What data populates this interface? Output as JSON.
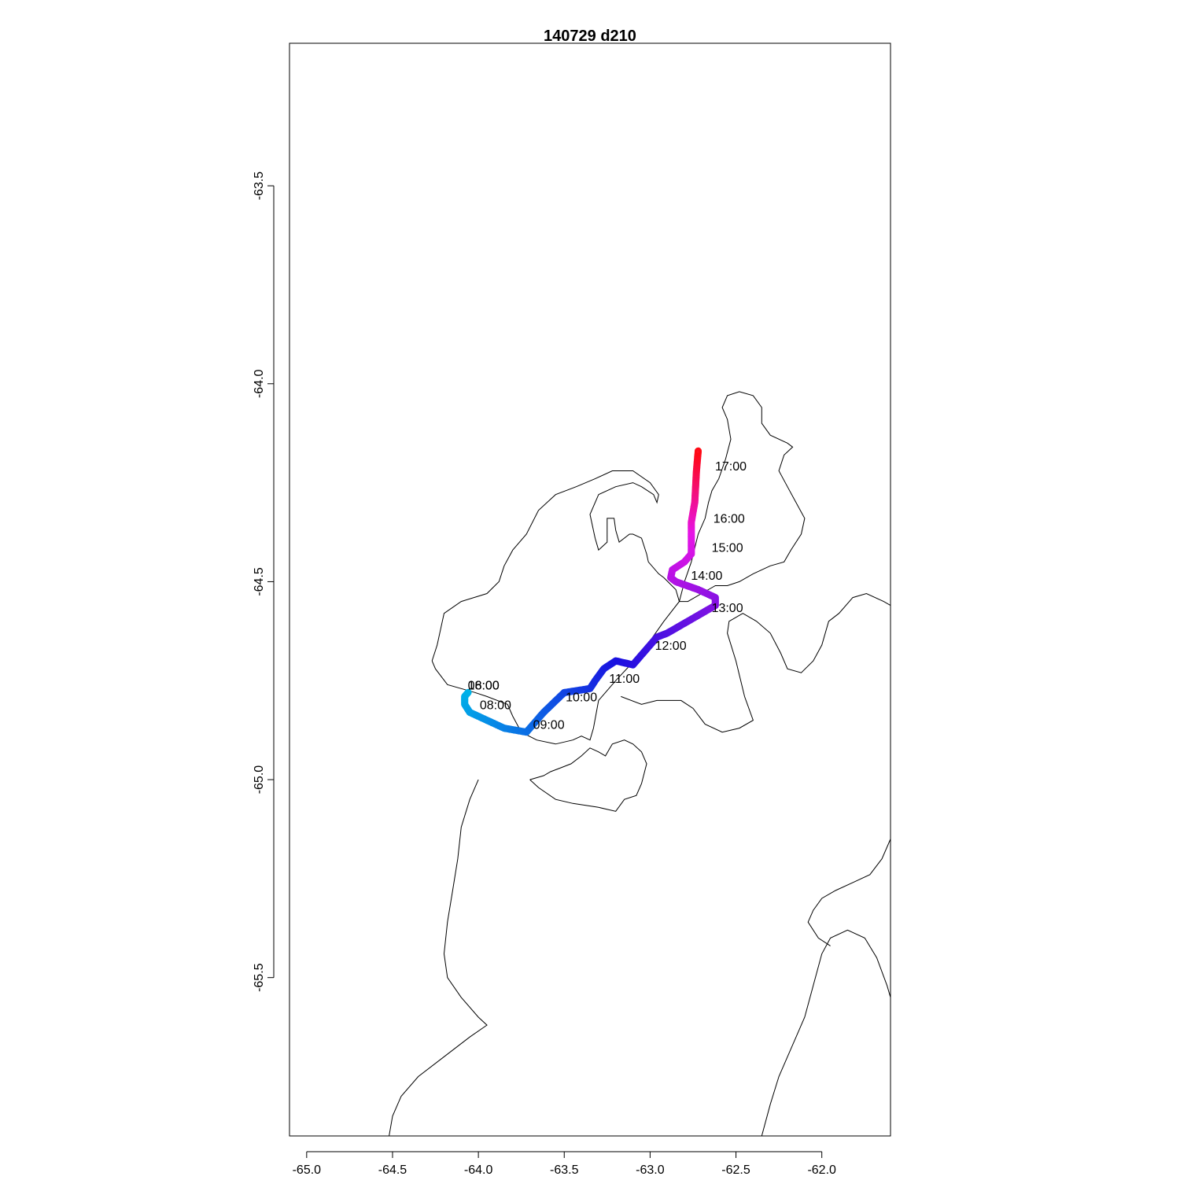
{
  "title": "140729   d210",
  "chart_data": {
    "type": "map-track",
    "title": "140729   d210",
    "xlabel": "",
    "ylabel": "",
    "xlim": [
      -65.1,
      -61.6
    ],
    "ylim": [
      -65.9,
      -63.14
    ],
    "x_ticks": [
      -65.0,
      -64.5,
      -64.0,
      -63.5,
      -63.0,
      -62.5,
      -62.0
    ],
    "y_ticks": [
      -63.5,
      -64.0,
      -64.5,
      -65.0,
      -65.5
    ],
    "x_tick_labels": [
      "-65.0",
      "-64.5",
      "-64.0",
      "-63.5",
      "-63.0",
      "-62.5",
      "-62.0"
    ],
    "y_tick_labels": [
      "-63.5",
      "-64.0",
      "-64.5",
      "-65.0",
      "-65.5"
    ],
    "track_color_start": "#00b4e8",
    "track_color_mid": "#1a10e0",
    "track_color_end": "#ff0a14",
    "track": [
      [
        -64.06,
        -64.78
      ],
      [
        -64.08,
        -64.79
      ],
      [
        -64.08,
        -64.81
      ],
      [
        -64.05,
        -64.83
      ],
      [
        -63.95,
        -64.85
      ],
      [
        -63.85,
        -64.87
      ],
      [
        -63.72,
        -64.88
      ],
      [
        -63.68,
        -64.86
      ],
      [
        -63.62,
        -64.83
      ],
      [
        -63.5,
        -64.78
      ],
      [
        -63.35,
        -64.77
      ],
      [
        -63.32,
        -64.75
      ],
      [
        -63.27,
        -64.72
      ],
      [
        -63.2,
        -64.7
      ],
      [
        -63.1,
        -64.71
      ],
      [
        -63.04,
        -64.68
      ],
      [
        -62.96,
        -64.64
      ],
      [
        -62.9,
        -64.63
      ],
      [
        -62.82,
        -64.61
      ],
      [
        -62.7,
        -64.58
      ],
      [
        -62.62,
        -64.56
      ],
      [
        -62.62,
        -64.54
      ],
      [
        -62.72,
        -64.52
      ],
      [
        -62.85,
        -64.5
      ],
      [
        -62.88,
        -64.49
      ],
      [
        -62.87,
        -64.47
      ],
      [
        -62.8,
        -64.45
      ],
      [
        -62.76,
        -64.43
      ],
      [
        -62.76,
        -64.35
      ],
      [
        -62.74,
        -64.3
      ],
      [
        -62.73,
        -64.22
      ],
      [
        -62.72,
        -64.17
      ]
    ],
    "time_labels": [
      {
        "time": "08:00",
        "lon": -63.9,
        "lat": -64.822
      },
      {
        "time": "09:00",
        "lon": -63.59,
        "lat": -64.872
      },
      {
        "time": "10:00",
        "lon": -63.4,
        "lat": -64.802
      },
      {
        "time": "11:00",
        "lon": -63.15,
        "lat": -64.755
      },
      {
        "time": "12:00",
        "lon": -62.88,
        "lat": -64.672
      },
      {
        "time": "13:00",
        "lon": -62.55,
        "lat": -64.577
      },
      {
        "time": "14:00",
        "lon": -62.67,
        "lat": -64.495
      },
      {
        "time": "15:00",
        "lon": -62.55,
        "lat": -64.425
      },
      {
        "time": "16:00",
        "lon": -62.54,
        "lat": -64.351
      },
      {
        "time": "17:00",
        "lon": -62.53,
        "lat": -64.219
      },
      {
        "time": "18:00",
        "lon": -63.97,
        "lat": -64.772
      },
      {
        "time": "06:00",
        "lon": -63.97,
        "lat": -64.772
      }
    ],
    "coastlines": [
      [
        [
          -64.27,
          -64.7
        ],
        [
          -64.25,
          -64.72
        ],
        [
          -64.18,
          -64.76
        ],
        [
          -64.1,
          -64.77
        ],
        [
          -64.02,
          -64.78
        ],
        [
          -63.95,
          -64.79
        ],
        [
          -63.83,
          -64.81
        ],
        [
          -63.8,
          -64.84
        ],
        [
          -63.75,
          -64.88
        ],
        [
          -63.66,
          -64.9
        ],
        [
          -63.55,
          -64.91
        ],
        [
          -63.45,
          -64.9
        ],
        [
          -63.4,
          -64.89
        ],
        [
          -63.35,
          -64.9
        ],
        [
          -63.33,
          -64.87
        ],
        [
          -63.3,
          -64.8
        ],
        [
          -63.2,
          -64.75
        ],
        [
          -63.05,
          -64.68
        ],
        [
          -62.92,
          -64.6
        ],
        [
          -62.83,
          -64.55
        ],
        [
          -62.85,
          -64.52
        ],
        [
          -62.92,
          -64.49
        ],
        [
          -62.95,
          -64.48
        ],
        [
          -63.01,
          -64.45
        ],
        [
          -63.02,
          -64.43
        ],
        [
          -63.05,
          -64.39
        ],
        [
          -63.1,
          -64.38
        ],
        [
          -63.12,
          -64.38
        ],
        [
          -63.18,
          -64.4
        ],
        [
          -63.2,
          -64.37
        ],
        [
          -63.21,
          -64.34
        ],
        [
          -63.25,
          -64.34
        ],
        [
          -63.25,
          -64.4
        ],
        [
          -63.3,
          -64.42
        ],
        [
          -63.32,
          -64.39
        ],
        [
          -63.35,
          -64.33
        ],
        [
          -63.3,
          -64.28
        ],
        [
          -63.2,
          -64.26
        ],
        [
          -63.1,
          -64.25
        ],
        [
          -63.05,
          -64.26
        ],
        [
          -62.98,
          -64.28
        ],
        [
          -62.96,
          -64.3
        ],
        [
          -62.95,
          -64.28
        ],
        [
          -63.0,
          -64.25
        ],
        [
          -63.1,
          -64.22
        ],
        [
          -63.22,
          -64.22
        ],
        [
          -63.32,
          -64.24
        ],
        [
          -63.43,
          -64.26
        ],
        [
          -63.55,
          -64.28
        ],
        [
          -63.65,
          -64.32
        ],
        [
          -63.72,
          -64.38
        ],
        [
          -63.8,
          -64.42
        ],
        [
          -63.85,
          -64.46
        ],
        [
          -63.88,
          -64.5
        ],
        [
          -63.95,
          -64.53
        ],
        [
          -64.1,
          -64.55
        ],
        [
          -64.2,
          -64.58
        ],
        [
          -64.22,
          -64.62
        ],
        [
          -64.24,
          -64.66
        ],
        [
          -64.27,
          -64.7
        ]
      ],
      [
        [
          -62.83,
          -64.55
        ],
        [
          -62.8,
          -64.5
        ],
        [
          -62.76,
          -64.45
        ],
        [
          -62.72,
          -64.38
        ],
        [
          -62.68,
          -64.34
        ],
        [
          -62.66,
          -64.3
        ],
        [
          -62.64,
          -64.27
        ],
        [
          -62.6,
          -64.24
        ],
        [
          -62.56,
          -64.19
        ],
        [
          -62.53,
          -64.14
        ],
        [
          -62.55,
          -64.09
        ],
        [
          -62.58,
          -64.06
        ],
        [
          -62.55,
          -64.03
        ],
        [
          -62.48,
          -64.02
        ],
        [
          -62.4,
          -64.03
        ],
        [
          -62.35,
          -64.06
        ],
        [
          -62.35,
          -64.1
        ],
        [
          -62.3,
          -64.13
        ],
        [
          -62.2,
          -64.15
        ],
        [
          -62.17,
          -64.16
        ],
        [
          -62.22,
          -64.18
        ],
        [
          -62.25,
          -64.22
        ],
        [
          -62.2,
          -64.26
        ],
        [
          -62.15,
          -64.3
        ],
        [
          -62.1,
          -64.34
        ],
        [
          -62.12,
          -64.38
        ],
        [
          -62.18,
          -64.42
        ],
        [
          -62.22,
          -64.45
        ],
        [
          -62.3,
          -64.46
        ],
        [
          -62.4,
          -64.48
        ],
        [
          -62.48,
          -64.5
        ],
        [
          -62.55,
          -64.51
        ],
        [
          -62.62,
          -64.51
        ],
        [
          -62.7,
          -64.53
        ],
        [
          -62.78,
          -64.55
        ],
        [
          -62.83,
          -64.55
        ]
      ],
      [
        [
          -63.17,
          -64.79
        ],
        [
          -63.05,
          -64.81
        ],
        [
          -62.96,
          -64.8
        ],
        [
          -62.88,
          -64.8
        ],
        [
          -62.82,
          -64.8
        ],
        [
          -62.75,
          -64.82
        ],
        [
          -62.68,
          -64.86
        ],
        [
          -62.58,
          -64.88
        ],
        [
          -62.48,
          -64.87
        ],
        [
          -62.4,
          -64.85
        ],
        [
          -62.45,
          -64.79
        ],
        [
          -62.5,
          -64.7
        ],
        [
          -62.55,
          -64.63
        ],
        [
          -62.54,
          -64.6
        ],
        [
          -62.46,
          -64.58
        ],
        [
          -62.38,
          -64.6
        ],
        [
          -62.3,
          -64.63
        ],
        [
          -62.24,
          -64.68
        ],
        [
          -62.2,
          -64.72
        ],
        [
          -62.12,
          -64.73
        ],
        [
          -62.05,
          -64.7
        ],
        [
          -62.0,
          -64.66
        ],
        [
          -61.96,
          -64.6
        ],
        [
          -61.9,
          -64.58
        ],
        [
          -61.82,
          -64.54
        ],
        [
          -61.74,
          -64.53
        ],
        [
          -61.64,
          -64.55
        ],
        [
          -61.6,
          -64.56
        ]
      ],
      [
        [
          -63.7,
          -65.0
        ],
        [
          -63.65,
          -65.02
        ],
        [
          -63.55,
          -65.05
        ],
        [
          -63.45,
          -65.06
        ],
        [
          -63.3,
          -65.07
        ],
        [
          -63.2,
          -65.08
        ],
        [
          -63.15,
          -65.05
        ],
        [
          -63.08,
          -65.04
        ],
        [
          -63.05,
          -65.01
        ],
        [
          -63.02,
          -64.96
        ],
        [
          -63.05,
          -64.93
        ],
        [
          -63.1,
          -64.91
        ],
        [
          -63.15,
          -64.9
        ],
        [
          -63.22,
          -64.91
        ],
        [
          -63.26,
          -64.94
        ],
        [
          -63.3,
          -64.93
        ],
        [
          -63.35,
          -64.92
        ],
        [
          -63.4,
          -64.94
        ],
        [
          -63.46,
          -64.96
        ],
        [
          -63.52,
          -64.97
        ],
        [
          -63.58,
          -64.98
        ],
        [
          -63.62,
          -64.99
        ],
        [
          -63.7,
          -65.0
        ]
      ],
      [
        [
          -64.0,
          -65.0
        ],
        [
          -64.05,
          -65.05
        ],
        [
          -64.1,
          -65.12
        ],
        [
          -64.12,
          -65.2
        ],
        [
          -64.15,
          -65.28
        ],
        [
          -64.18,
          -65.36
        ],
        [
          -64.2,
          -65.44
        ],
        [
          -64.18,
          -65.5
        ],
        [
          -64.1,
          -65.55
        ],
        [
          -64.0,
          -65.6
        ],
        [
          -63.95,
          -65.62
        ],
        [
          -64.05,
          -65.65
        ],
        [
          -64.2,
          -65.7
        ],
        [
          -64.35,
          -65.75
        ],
        [
          -64.45,
          -65.8
        ],
        [
          -64.5,
          -65.85
        ],
        [
          -64.52,
          -65.9
        ]
      ],
      [
        [
          -62.35,
          -65.9
        ],
        [
          -62.3,
          -65.82
        ],
        [
          -62.25,
          -65.75
        ],
        [
          -62.18,
          -65.68
        ],
        [
          -62.1,
          -65.6
        ],
        [
          -62.05,
          -65.52
        ],
        [
          -62.0,
          -65.44
        ],
        [
          -61.95,
          -65.4
        ],
        [
          -61.85,
          -65.38
        ],
        [
          -61.75,
          -65.4
        ],
        [
          -61.68,
          -65.45
        ],
        [
          -61.62,
          -65.52
        ],
        [
          -61.6,
          -65.55
        ]
      ],
      [
        [
          -61.6,
          -65.15
        ],
        [
          -61.65,
          -65.2
        ],
        [
          -61.72,
          -65.24
        ],
        [
          -61.82,
          -65.26
        ],
        [
          -61.92,
          -65.28
        ],
        [
          -62.0,
          -65.3
        ],
        [
          -62.05,
          -65.33
        ],
        [
          -62.08,
          -65.36
        ],
        [
          -62.02,
          -65.4
        ],
        [
          -61.95,
          -65.42
        ]
      ]
    ]
  }
}
